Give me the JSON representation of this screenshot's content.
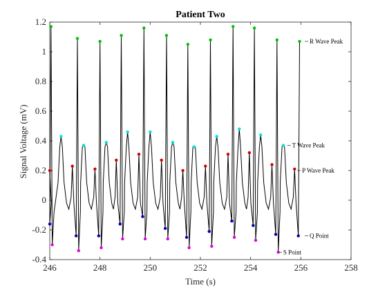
{
  "chart_data": {
    "type": "line",
    "title": "Patient Two",
    "xlabel": "Time (s)",
    "ylabel": "Signal Voltage (mV)",
    "xlim": [
      246,
      258
    ],
    "ylim": [
      -0.4,
      1.2
    ],
    "x_ticks": [
      246,
      248,
      250,
      252,
      254,
      256,
      258
    ],
    "y_ticks": [
      -0.4,
      -0.2,
      0,
      0.2,
      0.4,
      0.6,
      0.8,
      1,
      1.2
    ],
    "grid": false,
    "colors": {
      "signal": "#000000",
      "r_peak": "#00c000",
      "t_peak": "#00e0e0",
      "p_peak": "#d00000",
      "q_point": "#0000b0",
      "s_point": "#e000e0"
    },
    "beats": [
      {
        "p": [
          246.0,
          0.2
        ],
        "q": [
          246.0,
          -0.16
        ],
        "r": [
          246.05,
          1.17
        ],
        "s": [
          246.1,
          -0.3
        ],
        "t": [
          246.45,
          0.43
        ]
      },
      {
        "p": [
          246.9,
          0.23
        ],
        "q": [
          247.05,
          -0.24
        ],
        "r": [
          247.1,
          1.09
        ],
        "s": [
          247.15,
          -0.34
        ],
        "t": [
          247.35,
          0.37
        ]
      },
      {
        "p": [
          247.8,
          0.21
        ],
        "q": [
          247.95,
          -0.24
        ],
        "r": [
          248.0,
          1.07
        ],
        "s": [
          248.05,
          -0.32
        ],
        "t": [
          248.25,
          0.39
        ]
      },
      {
        "p": [
          248.65,
          0.27
        ],
        "q": [
          248.8,
          -0.16
        ],
        "r": [
          248.85,
          1.11
        ],
        "s": [
          248.9,
          -0.26
        ],
        "t": [
          249.1,
          0.46
        ]
      },
      {
        "p": [
          249.55,
          0.31
        ],
        "q": [
          249.7,
          -0.11
        ],
        "r": [
          249.75,
          1.16
        ],
        "s": [
          249.8,
          -0.26
        ],
        "t": [
          250.0,
          0.46
        ]
      },
      {
        "p": [
          250.45,
          0.27
        ],
        "q": [
          250.6,
          -0.19
        ],
        "r": [
          250.65,
          1.11
        ],
        "s": [
          250.7,
          -0.26
        ],
        "t": [
          250.9,
          0.39
        ]
      },
      {
        "p": [
          251.3,
          0.2
        ],
        "q": [
          251.45,
          -0.25
        ],
        "r": [
          251.5,
          1.05
        ],
        "s": [
          251.55,
          -0.32
        ],
        "t": [
          251.75,
          0.36
        ]
      },
      {
        "p": [
          252.2,
          0.23
        ],
        "q": [
          252.35,
          -0.21
        ],
        "r": [
          252.4,
          1.08
        ],
        "s": [
          252.45,
          -0.31
        ],
        "t": [
          252.65,
          0.43
        ]
      },
      {
        "p": [
          253.1,
          0.31
        ],
        "q": [
          253.25,
          -0.14
        ],
        "r": [
          253.3,
          1.17
        ],
        "s": [
          253.35,
          -0.25
        ],
        "t": [
          253.55,
          0.48
        ]
      },
      {
        "p": [
          253.95,
          0.32
        ],
        "q": [
          254.1,
          -0.17
        ],
        "r": [
          254.15,
          1.16
        ],
        "s": [
          254.2,
          -0.27
        ],
        "t": [
          254.4,
          0.44
        ]
      },
      {
        "p": [
          254.85,
          0.24
        ],
        "q": [
          255.0,
          -0.23
        ],
        "r": [
          255.05,
          1.08
        ],
        "s": [
          255.1,
          -0.35
        ],
        "t": [
          255.3,
          0.37
        ]
      },
      {
        "p": [
          255.75,
          0.21
        ],
        "q": [
          255.9,
          -0.24
        ],
        "r": [
          255.95,
          1.07
        ],
        "s": null,
        "t": null
      }
    ],
    "annotations": [
      {
        "text": "R Wave Peak",
        "x": 256.35,
        "y": 1.07
      },
      {
        "text": "T Wave Peak",
        "x": 255.65,
        "y": 0.37
      },
      {
        "text": "P Wave Peak",
        "x": 256.05,
        "y": 0.2
      },
      {
        "text": "Q Point",
        "x": 256.35,
        "y": -0.24
      },
      {
        "text": "S Point",
        "x": 255.3,
        "y": -0.35
      }
    ]
  }
}
